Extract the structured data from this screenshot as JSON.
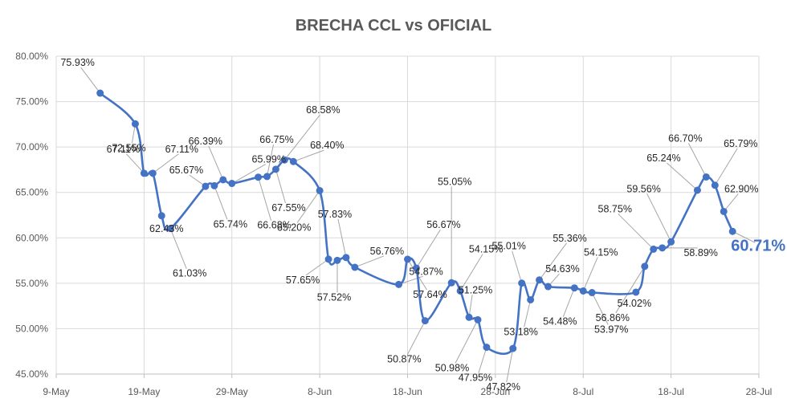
{
  "chart_data": {
    "type": "line",
    "title": "BRECHA CCL vs OFICIAL",
    "xlabel": "",
    "ylabel": "",
    "ylim": [
      45,
      80
    ],
    "xlim": [
      "2021-05-09",
      "2021-07-28"
    ],
    "y_ticks": [
      "45.00%",
      "50.00%",
      "55.00%",
      "60.00%",
      "65.00%",
      "70.00%",
      "75.00%",
      "80.00%"
    ],
    "x_ticks": [
      "9-May",
      "19-May",
      "29-May",
      "8-Jun",
      "18-Jun",
      "28-Jun",
      "8-Jul",
      "18-Jul",
      "28-Jul"
    ],
    "grid": true,
    "legend": "none",
    "series_color": "#4472c4",
    "points": [
      {
        "x": "2021-05-14",
        "y": 75.93,
        "label": "75.93%"
      },
      {
        "x": "2021-05-18",
        "y": 72.55,
        "label": "72.55%"
      },
      {
        "x": "2021-05-19",
        "y": 67.11,
        "label": "67.11%"
      },
      {
        "x": "2021-05-20",
        "y": 67.11,
        "label": "67.11%"
      },
      {
        "x": "2021-05-21",
        "y": 62.43,
        "label": "62.43%"
      },
      {
        "x": "2021-05-22",
        "y": 61.03,
        "label": "61.03%"
      },
      {
        "x": "2021-05-26",
        "y": 65.67,
        "label": "65.67%"
      },
      {
        "x": "2021-05-27",
        "y": 65.74,
        "label": "65.74%"
      },
      {
        "x": "2021-05-28",
        "y": 66.39,
        "label": "66.39%"
      },
      {
        "x": "2021-05-29",
        "y": 65.99,
        "label": "65.99%"
      },
      {
        "x": "2021-06-01",
        "y": 66.68,
        "label": "66.68%"
      },
      {
        "x": "2021-06-02",
        "y": 66.75,
        "label": "66.75%"
      },
      {
        "x": "2021-06-03",
        "y": 67.55,
        "label": "67.55%"
      },
      {
        "x": "2021-06-04",
        "y": 68.58,
        "label": "68.58%"
      },
      {
        "x": "2021-06-05",
        "y": 68.4,
        "label": "68.40%"
      },
      {
        "x": "2021-06-08",
        "y": 65.2,
        "label": "65.20%"
      },
      {
        "x": "2021-06-09",
        "y": 57.65,
        "label": "57.65%"
      },
      {
        "x": "2021-06-10",
        "y": 57.52,
        "label": "57.52%"
      },
      {
        "x": "2021-06-11",
        "y": 57.83,
        "label": "57.83%"
      },
      {
        "x": "2021-06-12",
        "y": 56.76,
        "label": "56.76%"
      },
      {
        "x": "2021-06-17",
        "y": 54.87,
        "label": "54.87%"
      },
      {
        "x": "2021-06-18",
        "y": 57.64,
        "label": "57.64%"
      },
      {
        "x": "2021-06-19",
        "y": 56.67,
        "label": "56.67%"
      },
      {
        "x": "2021-06-20",
        "y": 50.87,
        "label": "50.87%"
      },
      {
        "x": "2021-06-23",
        "y": 55.05,
        "label": "55.05%"
      },
      {
        "x": "2021-06-24",
        "y": 54.15,
        "label": "54.15%"
      },
      {
        "x": "2021-06-25",
        "y": 51.25,
        "label": "51.25%"
      },
      {
        "x": "2021-06-26",
        "y": 50.98,
        "label": "50.98%"
      },
      {
        "x": "2021-06-27",
        "y": 47.95,
        "label": "47.95%"
      },
      {
        "x": "2021-06-30",
        "y": 47.82,
        "label": "47.82%"
      },
      {
        "x": "2021-07-01",
        "y": 55.01,
        "label": "55.01%"
      },
      {
        "x": "2021-07-02",
        "y": 53.18,
        "label": "53.18%"
      },
      {
        "x": "2021-07-03",
        "y": 55.36,
        "label": "55.36%"
      },
      {
        "x": "2021-07-04",
        "y": 54.63,
        "label": "54.63%"
      },
      {
        "x": "2021-07-07",
        "y": 54.48,
        "label": "54.48%"
      },
      {
        "x": "2021-07-08",
        "y": 54.15,
        "label": "54.15%"
      },
      {
        "x": "2021-07-09",
        "y": 53.97,
        "label": "53.97%"
      },
      {
        "x": "2021-07-14",
        "y": 54.02,
        "label": "54.02%"
      },
      {
        "x": "2021-07-15",
        "y": 56.86,
        "label": "56.86%"
      },
      {
        "x": "2021-07-16",
        "y": 58.75,
        "label": "58.75%"
      },
      {
        "x": "2021-07-17",
        "y": 58.89,
        "label": "58.89%"
      },
      {
        "x": "2021-07-18",
        "y": 59.56,
        "label": "59.56%"
      },
      {
        "x": "2021-07-21",
        "y": 65.24,
        "label": "65.24%"
      },
      {
        "x": "2021-07-22",
        "y": 66.7,
        "label": "66.70%"
      },
      {
        "x": "2021-07-23",
        "y": 65.79,
        "label": "65.79%"
      },
      {
        "x": "2021-07-24",
        "y": 62.9,
        "label": "62.90%"
      },
      {
        "x": "2021-07-25",
        "y": 60.71,
        "label": "60.71%"
      }
    ]
  }
}
